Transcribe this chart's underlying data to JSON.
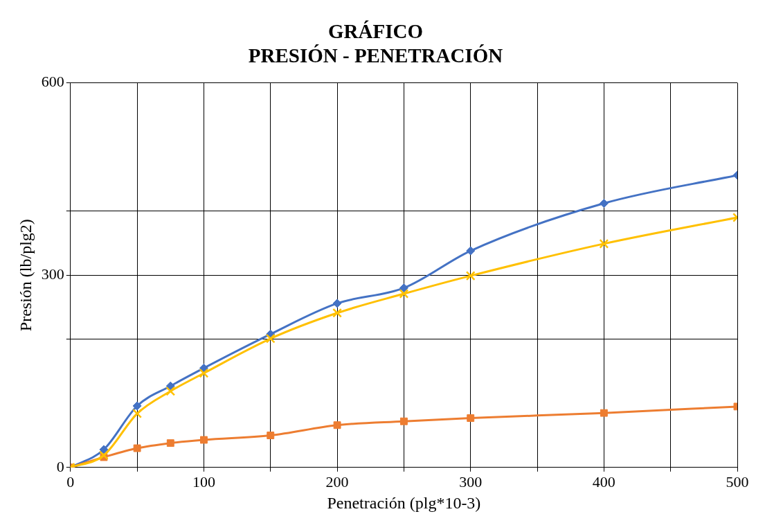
{
  "chart_data": {
    "type": "line",
    "title": "GRÁFICO\nPRESIÓN - PENETRACIÓN",
    "xlabel": "Penetración (plg*10-3)",
    "ylabel": "Presión (lb/plg2)",
    "xlim": [
      0,
      500
    ],
    "xticks": [
      0,
      {
        "value": 50,
        "label": null
      },
      100,
      {
        "value": 150,
        "label": null
      },
      200,
      {
        "value": 250,
        "label": null
      },
      300,
      {
        "value": 350,
        "label": null
      },
      400,
      {
        "value": 450,
        "label": null
      },
      500
    ],
    "ylim": [
      0,
      600
    ],
    "yticks": [
      0,
      {
        "value": 200,
        "label": null
      },
      300,
      {
        "value": 400,
        "label": null
      },
      600
    ],
    "grid": true,
    "legend": false,
    "x": [
      0,
      25,
      50,
      75,
      100,
      150,
      200,
      250,
      300,
      400,
      500
    ],
    "series": [
      {
        "color": "#4472c4",
        "marker": "diamond",
        "values": [
          0,
          28,
          96,
          127,
          155,
          208,
          256,
          280,
          338,
          412,
          456
        ]
      },
      {
        "color": "#ed7d31",
        "marker": "square",
        "values": [
          0,
          16,
          30,
          38,
          43,
          50,
          66,
          72,
          77,
          85,
          95
        ]
      },
      {
        "color": "#ffc000",
        "marker": "cross",
        "values": [
          0,
          19,
          84,
          119,
          147,
          201,
          241,
          271,
          299,
          349,
          390
        ]
      }
    ]
  }
}
